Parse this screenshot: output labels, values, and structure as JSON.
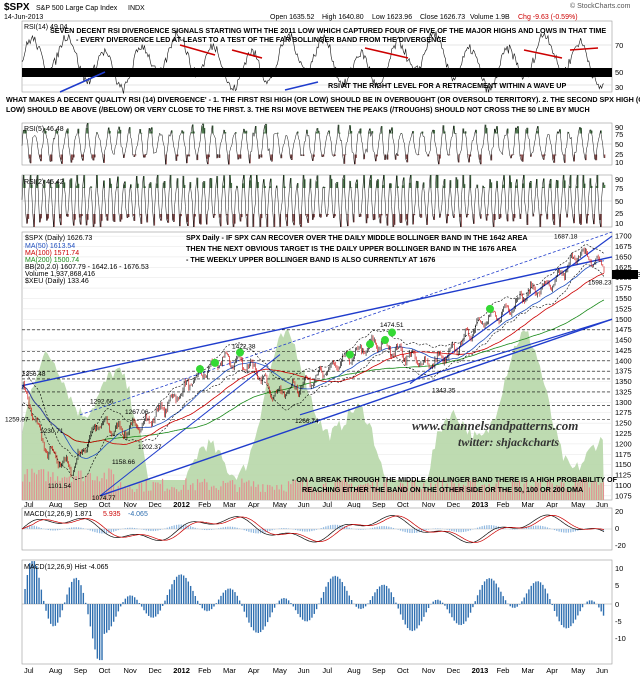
{
  "header": {
    "symbol": "$SPX",
    "name": "S&P 500 Large Cap Index",
    "exchange": "INDX",
    "date": "14-Jun-2013",
    "open": "Open 1635.52",
    "high": "High 1640.80",
    "low": "Low 1623.96",
    "close": "Close 1626.73",
    "volume": "Volume 1.9B",
    "chg": "Chg -9.63 (-0.59%)",
    "source": "© StockCharts.com"
  },
  "colors": {
    "price_up": "#000000",
    "price_down": "#cc0000",
    "ma50": "#1f4fbf",
    "ma100": "#cc0000",
    "ma200": "#1a8a1a",
    "bb": "#000000",
    "volume": "#e39090",
    "hist": "#2f6fb0",
    "trend": "#1f3ccc",
    "bg_area": "#b7d7a8",
    "green_dot": "#34d934"
  },
  "x_axis": {
    "labels": [
      "Jul",
      "Aug",
      "Sep",
      "Oct",
      "Nov",
      "Dec",
      "2012",
      "Feb",
      "Mar",
      "Apr",
      "May",
      "Jun",
      "Jul",
      "Aug",
      "Sep",
      "Oct",
      "Nov",
      "Dec",
      "2013",
      "Feb",
      "Mar",
      "Apr",
      "May",
      "Jun"
    ]
  },
  "panels": {
    "rsi14": {
      "legend": "RSI(14) 49.04",
      "ticks": [
        "70",
        "50",
        "30"
      ],
      "note": "RSI AT THE RIGHT LEVEL FOR A RETRACEMENT WITHIN A WAVE UP"
    },
    "rsi5": {
      "legend": "RSI(5) 46.48",
      "ticks": [
        "90",
        "75",
        "50",
        "25",
        "10"
      ]
    },
    "rsi2": {
      "legend": "RSI(2) 45.42",
      "ticks": [
        "90",
        "75",
        "50",
        "25",
        "10"
      ]
    },
    "price": {
      "legend": [
        "$SPX (Daily) 1626.73",
        "MA(50) 1613.54",
        "MA(100) 1571.74",
        "MA(200) 1500.74",
        "BB(20,2.0) 1607.79 - 1642.16 - 1676.53",
        "Volume 1,937,868,416",
        "$XEU (Daily) 133.46"
      ],
      "ticks": [
        "1700",
        "1675",
        "1650",
        "1625",
        "1600",
        "1575",
        "1550",
        "1525",
        "1500",
        "1475",
        "1450",
        "1425",
        "1400",
        "1375",
        "1350",
        "1325",
        "1300",
        "1275",
        "1250",
        "1225",
        "1200",
        "1175",
        "1150",
        "1125",
        "1100",
        "1075"
      ],
      "last_price_label": "1626.73",
      "annotation": [
        "SPX Daily - IF SPX CAN RECOVER OVER THE DAILY MIDDLE BOLLINGER BAND IN THE 1642 AREA",
        "THEN THE NEXT OBVIOUS TARGET IS THE DAILY UPPER BOLLINGER BAND IN THE 1676 AREA",
        "- THE WEEKLY UPPER BOLLINGER BAND IS ALSO CURRENTLY AT 1676"
      ],
      "bottom_note": [
        "- ON A BREAK THROUGH THE MIDDLE BOLLINGER BAND THERE IS A HIGH PROBABILITY OF",
        "REACHING EITHER THE BAND ON THE OTHER SIDE OR THE 50, 100 OR 200 DMA"
      ],
      "watermark": [
        "www.channelsandpatterns.com",
        "twitter: shjackcharts"
      ]
    },
    "macd": {
      "legend": "MACD(12,26,9) 1.871",
      "signal": "5.935",
      "hist": "-4.065",
      "ticks": [
        "20",
        "0",
        "-20"
      ]
    },
    "macd_hist": {
      "legend": "MACD(12,26,9) Hist -4.065",
      "ticks": [
        "10",
        "5",
        "0",
        "-5",
        "-10"
      ]
    }
  },
  "top_annotation": [
    "SEVEN DECENT RSI DIVERGENCE SIGNALS STARTING WITH THE 2011 LOW WHICH CAPTURED FOUR OF FIVE OF THE MAJOR HIGHS AND LOWS IN THAT TIME",
    "- EVERY DIVERGENCE LED AT LEAST TO A TEST OF THE FAR BOLLINGER BAND FROM THE DIVERGENCE"
  ],
  "mid_annotation": [
    "WHAT MAKES A DECENT QUALITY RSI (14) DIVERGENCE' - 1. THE FIRST RSI HIGH (OR LOW) SHOULD BE IN OVERBOUGHT (OR OVERSOLD TERRITORY). 2. THE SECOND SPX HIGH (OR",
    "LOW) SHOULD BE ABOVE (/BELOW) OR VERY CLOSE TO THE FIRST. 3. THE RSI MOVE BETWEEN THE PEAKS (/TROUGHS) SHOULD NOT CROSS THE 50 LINE BY MUCH"
  ],
  "chart_data": {
    "type": "line",
    "title": "$SPX S&P 500 Large Cap Index INDX",
    "x": [
      "Jul 2011",
      "Aug 2011",
      "Sep 2011",
      "Oct 2011",
      "Nov 2011",
      "Dec 2011",
      "Jan 2012",
      "Feb 2012",
      "Mar 2012",
      "Apr 2012",
      "May 2012",
      "Jun 2012",
      "Jul 2012",
      "Aug 2012",
      "Sep 2012",
      "Oct 2012",
      "Nov 2012",
      "Dec 2012",
      "Jan 2013",
      "Feb 2013",
      "Mar 2013",
      "Apr 2013",
      "May 2013",
      "Jun 2013"
    ],
    "series": [
      {
        "name": "$SPX (Daily)",
        "values": [
          1340,
          1180,
          1140,
          1250,
          1230,
          1255,
          1310,
          1365,
          1405,
          1390,
          1320,
          1340,
          1375,
          1410,
          1445,
          1420,
          1390,
          1420,
          1490,
          1515,
          1565,
          1585,
          1660,
          1626.73
        ]
      }
    ],
    "labeled_points": [
      {
        "label": "1356.48",
        "value": 1356.48
      },
      {
        "label": "1259.07",
        "value": 1259.07
      },
      {
        "label": "1230.71",
        "value": 1230.71
      },
      {
        "label": "1101.54",
        "value": 1101.54
      },
      {
        "label": "1074.77",
        "value": 1074.77
      },
      {
        "label": "1292.66",
        "value": 1292.66
      },
      {
        "label": "1267.06",
        "value": 1267.06
      },
      {
        "label": "1202.37",
        "value": 1202.37
      },
      {
        "label": "1158.66",
        "value": 1158.66
      },
      {
        "label": "1422.38",
        "value": 1422.38
      },
      {
        "label": "1266.74",
        "value": 1266.74
      },
      {
        "label": "1474.51",
        "value": 1474.51
      },
      {
        "label": "1343.35",
        "value": 1343.35
      },
      {
        "label": "1687.18",
        "value": 1687.18
      },
      {
        "label": "1598.23",
        "value": 1598.23
      }
    ],
    "ylim": [
      1065,
      1710
    ],
    "grid": true,
    "legend_position": "top-left"
  }
}
